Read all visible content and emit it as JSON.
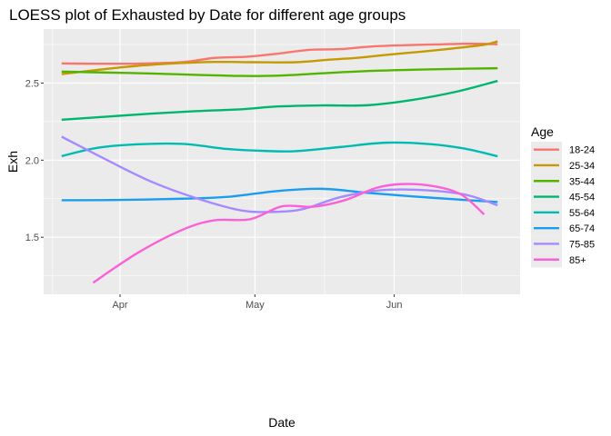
{
  "chart_data": {
    "type": "line",
    "title": "LOESS plot of Exhausted by Date for different age groups",
    "xlabel": "Date",
    "ylabel": "Exh",
    "x_ticks": [
      "Apr",
      "May",
      "Jun"
    ],
    "y_ticks": [
      "1.5",
      "2.0",
      "2.5"
    ],
    "y_tick_values": [
      1.5,
      2.0,
      2.5
    ],
    "x_tick_values": [
      "2021-04-01",
      "2021-05-01",
      "2021-06-01"
    ],
    "xlim": [
      "2021-03-15",
      "2021-06-29"
    ],
    "ylim": [
      1.13,
      2.85
    ],
    "grid": true,
    "legend": {
      "title": "Age",
      "position": "right"
    },
    "series": [
      {
        "name": "18-24",
        "color": "#F8766D",
        "x": [
          "2021-03-19",
          "2021-03-27",
          "2021-04-05",
          "2021-04-15",
          "2021-04-22",
          "2021-04-29",
          "2021-05-06",
          "2021-05-13",
          "2021-05-20",
          "2021-05-27",
          "2021-06-03",
          "2021-06-10",
          "2021-06-17",
          "2021-06-24"
        ],
        "y": [
          2.627,
          2.625,
          2.626,
          2.636,
          2.663,
          2.67,
          2.69,
          2.715,
          2.72,
          2.737,
          2.745,
          2.75,
          2.755,
          2.752
        ]
      },
      {
        "name": "25-34",
        "color": "#C49A00",
        "x": [
          "2021-03-19",
          "2021-03-27",
          "2021-04-05",
          "2021-04-15",
          "2021-04-22",
          "2021-05-01",
          "2021-05-10",
          "2021-05-17",
          "2021-05-24",
          "2021-05-31",
          "2021-06-07",
          "2021-06-14",
          "2021-06-21",
          "2021-06-24"
        ],
        "y": [
          2.558,
          2.585,
          2.612,
          2.63,
          2.637,
          2.635,
          2.635,
          2.65,
          2.664,
          2.685,
          2.703,
          2.724,
          2.748,
          2.77
        ]
      },
      {
        "name": "35-44",
        "color": "#53B400",
        "x": [
          "2021-03-19",
          "2021-03-29",
          "2021-04-08",
          "2021-04-18",
          "2021-04-28",
          "2021-05-06",
          "2021-05-16",
          "2021-05-26",
          "2021-06-05",
          "2021-06-15",
          "2021-06-24"
        ],
        "y": [
          2.574,
          2.568,
          2.562,
          2.553,
          2.546,
          2.548,
          2.563,
          2.578,
          2.586,
          2.592,
          2.596
        ]
      },
      {
        "name": "45-54",
        "color": "#00B66C",
        "x": [
          "2021-03-19",
          "2021-03-29",
          "2021-04-08",
          "2021-04-18",
          "2021-04-28",
          "2021-05-06",
          "2021-05-16",
          "2021-05-26",
          "2021-06-05",
          "2021-06-15",
          "2021-06-24"
        ],
        "y": [
          2.262,
          2.282,
          2.302,
          2.318,
          2.33,
          2.348,
          2.355,
          2.356,
          2.39,
          2.445,
          2.514
        ]
      },
      {
        "name": "55-64",
        "color": "#00BBB1",
        "x": [
          "2021-03-19",
          "2021-03-27",
          "2021-04-05",
          "2021-04-15",
          "2021-04-25",
          "2021-05-03",
          "2021-05-10",
          "2021-05-20",
          "2021-05-30",
          "2021-06-09",
          "2021-06-17",
          "2021-06-24"
        ],
        "y": [
          2.026,
          2.08,
          2.103,
          2.105,
          2.072,
          2.06,
          2.058,
          2.085,
          2.113,
          2.104,
          2.073,
          2.025
        ]
      },
      {
        "name": "65-74",
        "color": "#1B9DEF",
        "x": [
          "2021-03-19",
          "2021-04-01",
          "2021-04-15",
          "2021-04-25",
          "2021-05-06",
          "2021-05-16",
          "2021-05-26",
          "2021-06-05",
          "2021-06-15",
          "2021-06-24"
        ],
        "y": [
          1.74,
          1.742,
          1.75,
          1.762,
          1.8,
          1.814,
          1.788,
          1.765,
          1.745,
          1.728
        ]
      },
      {
        "name": "75-85",
        "color": "#A58AFF",
        "x": [
          "2021-03-19",
          "2021-03-29",
          "2021-04-08",
          "2021-04-18",
          "2021-04-28",
          "2021-05-06",
          "2021-05-12",
          "2021-05-20",
          "2021-05-29",
          "2021-06-08",
          "2021-06-17",
          "2021-06-24"
        ],
        "y": [
          2.152,
          2.002,
          1.86,
          1.753,
          1.674,
          1.665,
          1.685,
          1.76,
          1.805,
          1.805,
          1.775,
          1.707
        ]
      },
      {
        "name": "85+",
        "color": "#FB61D7",
        "x": [
          "2021-03-26",
          "2021-04-05",
          "2021-04-15",
          "2021-04-22",
          "2021-04-30",
          "2021-05-07",
          "2021-05-14",
          "2021-05-21",
          "2021-05-28",
          "2021-06-03",
          "2021-06-10",
          "2021-06-16",
          "2021-06-21"
        ],
        "y": [
          1.205,
          1.4,
          1.55,
          1.61,
          1.617,
          1.7,
          1.698,
          1.74,
          1.82,
          1.845,
          1.83,
          1.775,
          1.648
        ]
      }
    ]
  }
}
